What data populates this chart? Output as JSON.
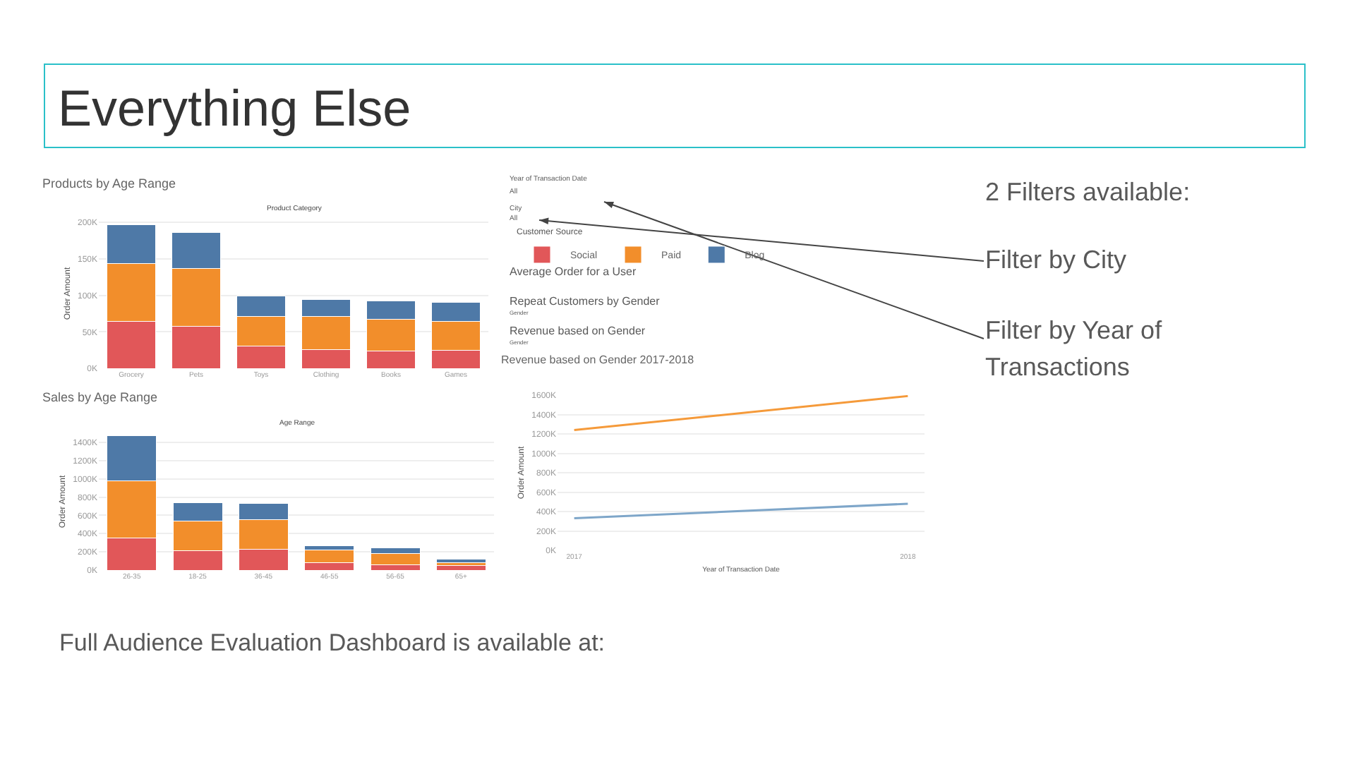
{
  "chart_data": [
    {
      "type": "other",
      "title": "Everything Else",
      "annotations": [
        "Year of Transaction Date",
        "All",
        "City",
        "All",
        "Average Order for a User",
        "Repeat Customers by Gender",
        "Gender",
        "Revenue based on Gender",
        "Gender",
        "2 Filters available:",
        "Filter by City",
        "Filter by Year of Transactions",
        "Full Audience Evaluation Dashboard is available at:"
      ]
    },
    {
      "type": "bar",
      "stacked": true,
      "title": "Products by Age Range",
      "xlabel": "Product Category",
      "ylabel": "Order Amount",
      "legend_title": "Customer Source",
      "legend": "top right",
      "grid": "y",
      "categories": [
        "Grocery",
        "Pets",
        "Toys",
        "Clothing",
        "Books",
        "Games"
      ],
      "ylim": [
        0,
        205000
      ],
      "yticks": [
        {
          "value": 0,
          "label": "0K"
        },
        {
          "value": 50000,
          "label": "50K"
        },
        {
          "value": 100000,
          "label": "100K"
        },
        {
          "value": 150000,
          "label": "150K"
        },
        {
          "value": 200000,
          "label": "200K"
        }
      ],
      "series": [
        {
          "name": "Social",
          "color": "#e15759",
          "values": [
            64000,
            58000,
            30000,
            26000,
            24000,
            25000
          ]
        },
        {
          "name": "Paid",
          "color": "#f28e2b",
          "values": [
            80000,
            79000,
            41000,
            45000,
            43000,
            39000
          ]
        },
        {
          "name": "Blog",
          "color": "#4e79a7",
          "values": [
            53000,
            49000,
            28000,
            23000,
            25000,
            26000
          ]
        }
      ]
    },
    {
      "type": "bar",
      "stacked": true,
      "title": "Sales by Age Range",
      "xlabel": "Age Range",
      "ylabel": "Order Amount",
      "grid": "y",
      "categories": [
        "26-35",
        "18-25",
        "36-45",
        "46-55",
        "56-65",
        "65+"
      ],
      "ylim": [
        0,
        1500000
      ],
      "yticks": [
        {
          "value": 0,
          "label": "0K"
        },
        {
          "value": 200000,
          "label": "200K"
        },
        {
          "value": 400000,
          "label": "400K"
        },
        {
          "value": 600000,
          "label": "600K"
        },
        {
          "value": 800000,
          "label": "800K"
        },
        {
          "value": 1000000,
          "label": "1000K"
        },
        {
          "value": 1200000,
          "label": "1200K"
        },
        {
          "value": 1400000,
          "label": "1400K"
        }
      ],
      "series": [
        {
          "color": "#e15759",
          "values": [
            350000,
            210000,
            230000,
            80000,
            60000,
            50000
          ]
        },
        {
          "color": "#f28e2b",
          "values": [
            630000,
            330000,
            320000,
            140000,
            120000,
            30000
          ]
        },
        {
          "color": "#4e79a7",
          "values": [
            490000,
            200000,
            180000,
            50000,
            60000,
            40000
          ]
        }
      ]
    },
    {
      "type": "line",
      "title": "Revenue based on Gender 2017-2018",
      "xlabel": "Year of Transaction Date",
      "ylabel": "Order Amount",
      "grid": "y",
      "x": [
        2017,
        2018
      ],
      "xlim": [
        2016.95,
        2018.05
      ],
      "xticks": [
        2017,
        2018
      ],
      "ylim": [
        0,
        1600000
      ],
      "yticks": [
        {
          "value": 0,
          "label": "0K"
        },
        {
          "value": 200000,
          "label": "200K"
        },
        {
          "value": 400000,
          "label": "400K"
        },
        {
          "value": 600000,
          "label": "600K"
        },
        {
          "value": 800000,
          "label": "800K"
        },
        {
          "value": 1000000,
          "label": "1000K"
        },
        {
          "value": 1200000,
          "label": "1200K"
        },
        {
          "value": 1400000,
          "label": "1400K"
        },
        {
          "value": 1600000,
          "label": "1600K"
        }
      ],
      "series": [
        {
          "color": "#f59a3a",
          "values": [
            1240000,
            1590000
          ]
        },
        {
          "color": "#7ea6c9",
          "values": [
            330000,
            480000
          ]
        }
      ]
    }
  ]
}
